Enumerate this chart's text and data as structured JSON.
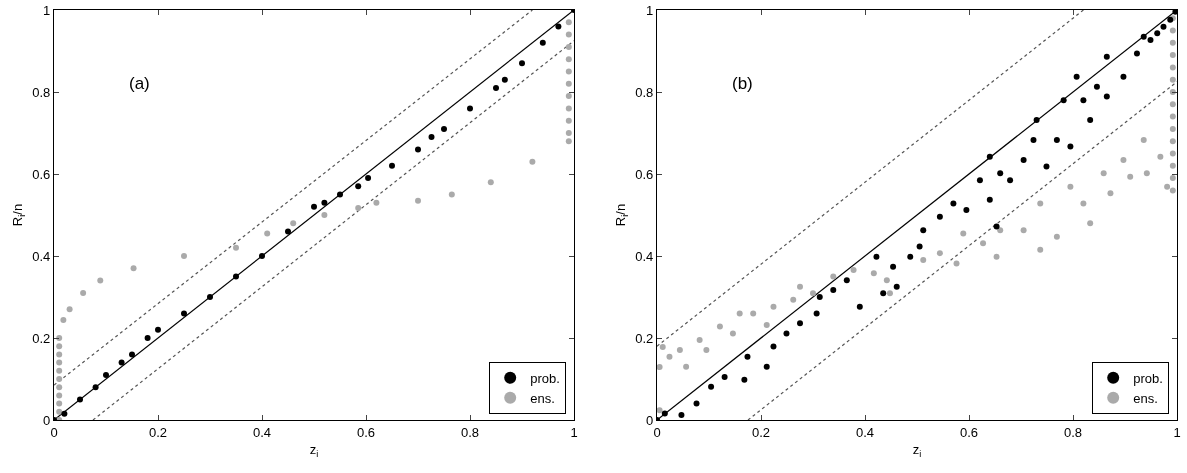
{
  "chart_data": [
    {
      "type": "scatter",
      "xlabel": "z$_{i}$",
      "ylabel": "R$_{i}$/n",
      "annotations": [
        "(a)"
      ],
      "xlim": [
        0,
        1
      ],
      "ylim": [
        0,
        1
      ],
      "xticks": [
        0,
        0.2,
        0.4,
        0.6,
        0.8,
        1
      ],
      "yticks": [
        0,
        0.2,
        0.4,
        0.6,
        0.8,
        1
      ],
      "legend": "bottom right",
      "marker": "circle",
      "series": [
        {
          "name": "prob.",
          "color": "#000000",
          "x": [
            0,
            0.02,
            0.05,
            0.08,
            0.1,
            0.13,
            0.15,
            0.18,
            0.2,
            0.25,
            0.3,
            0.35,
            0.4,
            0.45,
            0.5,
            0.52,
            0.55,
            0.585,
            0.604,
            0.65,
            0.7,
            0.726,
            0.75,
            0.8,
            0.85,
            0.867,
            0.9,
            0.94,
            0.97,
            1
          ],
          "values": [
            0,
            0.015,
            0.05,
            0.08,
            0.11,
            0.14,
            0.16,
            0.2,
            0.22,
            0.26,
            0.3,
            0.35,
            0.4,
            0.46,
            0.52,
            0.53,
            0.55,
            0.57,
            0.59,
            0.62,
            0.66,
            0.69,
            0.71,
            0.76,
            0.81,
            0.83,
            0.87,
            0.92,
            0.96,
            1
          ]
        },
        {
          "name": "ens.",
          "color": "#aaaaaa",
          "x": [
            0.01,
            0.01,
            0.01,
            0.01,
            0.01,
            0.01,
            0.01,
            0.01,
            0.01,
            0.01,
            0.01,
            0.018,
            0.03,
            0.056,
            0.089,
            0.153,
            0.25,
            0.35,
            0.41,
            0.46,
            0.52,
            0.585,
            0.62,
            0.7,
            0.765,
            0.84,
            0.92,
            0.99,
            0.99,
            0.99,
            0.99,
            0.99,
            0.99,
            0.99,
            0.99,
            0.99,
            0.99,
            0.99
          ],
          "values": [
            0,
            0.02,
            0.04,
            0.06,
            0.08,
            0.1,
            0.12,
            0.14,
            0.16,
            0.18,
            0.2,
            0.244,
            0.27,
            0.31,
            0.34,
            0.37,
            0.4,
            0.42,
            0.455,
            0.48,
            0.5,
            0.517,
            0.53,
            0.535,
            0.55,
            0.58,
            0.63,
            0.68,
            0.7,
            0.73,
            0.76,
            0.79,
            0.82,
            0.85,
            0.88,
            0.91,
            0.94,
            0.97
          ]
        },
        {
          "type": "line",
          "color": "#000000",
          "line_style": "solid",
          "marker": "none",
          "x": [
            0,
            1
          ],
          "values": [
            0,
            1
          ]
        },
        {
          "type": "line",
          "color": "#555555",
          "line_style": "dotted",
          "marker": "none",
          "x": [
            0,
            0.92
          ],
          "values": [
            0.085,
            1
          ]
        },
        {
          "type": "line",
          "color": "#555555",
          "line_style": "dotted",
          "marker": "none",
          "x": [
            0.075,
            1
          ],
          "values": [
            0,
            0.925
          ]
        }
      ]
    },
    {
      "type": "scatter",
      "xlabel": "z$_{i}$",
      "ylabel": "R$_{i}$/n",
      "annotations": [
        "(b)"
      ],
      "xlim": [
        0,
        1
      ],
      "ylim": [
        0,
        1
      ],
      "xticks": [
        0,
        0.2,
        0.4,
        0.6,
        0.8,
        1
      ],
      "yticks": [
        0,
        0.2,
        0.4,
        0.6,
        0.8,
        1
      ],
      "legend": "bottom right",
      "marker": "circle",
      "series": [
        {
          "name": "prob.",
          "color": "#000000",
          "x": [
            0,
            0.015,
            0.047,
            0.076,
            0.104,
            0.13,
            0.168,
            0.174,
            0.211,
            0.224,
            0.249,
            0.275,
            0.307,
            0.313,
            0.339,
            0.365,
            0.39,
            0.422,
            0.435,
            0.454,
            0.461,
            0.487,
            0.505,
            0.512,
            0.544,
            0.57,
            0.595,
            0.621,
            0.64,
            0.64,
            0.653,
            0.66,
            0.679,
            0.705,
            0.724,
            0.73,
            0.749,
            0.769,
            0.782,
            0.795,
            0.807,
            0.82,
            0.833,
            0.846,
            0.865,
            0.865,
            0.897,
            0.923,
            0.936,
            0.949,
            0.962,
            0.974,
            0.987,
            0.997
          ],
          "values": [
            0,
            0.016,
            0.012,
            0.04,
            0.081,
            0.105,
            0.098,
            0.154,
            0.13,
            0.179,
            0.211,
            0.236,
            0.26,
            0.3,
            0.317,
            0.341,
            0.276,
            0.398,
            0.309,
            0.374,
            0.325,
            0.398,
            0.423,
            0.463,
            0.496,
            0.528,
            0.512,
            0.585,
            0.537,
            0.642,
            0.472,
            0.602,
            0.585,
            0.634,
            0.683,
            0.732,
            0.618,
            0.683,
            0.78,
            0.667,
            0.837,
            0.78,
            0.732,
            0.813,
            0.886,
            0.789,
            0.837,
            0.894,
            0.935,
            0.927,
            0.943,
            0.959,
            0.976,
            0.996
          ]
        },
        {
          "name": "ens.",
          "color": "#aaaaaa",
          "x": [
            0.005,
            0.005,
            0.011,
            0.024,
            0.044,
            0.056,
            0.082,
            0.095,
            0.121,
            0.146,
            0.159,
            0.185,
            0.211,
            0.224,
            0.262,
            0.275,
            0.3,
            0.339,
            0.378,
            0.417,
            0.442,
            0.448,
            0.512,
            0.544,
            0.576,
            0.589,
            0.627,
            0.653,
            0.66,
            0.705,
            0.737,
            0.737,
            0.769,
            0.795,
            0.82,
            0.833,
            0.859,
            0.872,
            0.897,
            0.91,
            0.936,
            0.942,
            0.968,
            0.981,
            0.992,
            0.992,
            0.992,
            0.992,
            0.992,
            0.992,
            0.992,
            0.992,
            0.992,
            0.992,
            0.992,
            0.992,
            0.992,
            0.992,
            0.992
          ],
          "values": [
            0.024,
            0.129,
            0.178,
            0.154,
            0.171,
            0.13,
            0.195,
            0.171,
            0.228,
            0.211,
            0.26,
            0.26,
            0.232,
            0.276,
            0.293,
            0.325,
            0.309,
            0.35,
            0.366,
            0.358,
            0.341,
            0.309,
            0.39,
            0.407,
            0.382,
            0.455,
            0.431,
            0.398,
            0.463,
            0.463,
            0.415,
            0.528,
            0.447,
            0.569,
            0.528,
            0.48,
            0.602,
            0.553,
            0.634,
            0.593,
            0.683,
            0.602,
            0.642,
            0.569,
            0.56,
            0.59,
            0.62,
            0.65,
            0.68,
            0.71,
            0.74,
            0.77,
            0.8,
            0.83,
            0.86,
            0.89,
            0.92,
            0.95,
            0.98
          ]
        },
        {
          "type": "line",
          "color": "#000000",
          "line_style": "solid",
          "marker": "none",
          "x": [
            0,
            1
          ],
          "values": [
            0,
            1
          ]
        },
        {
          "type": "line",
          "color": "#555555",
          "line_style": "dotted",
          "marker": "none",
          "x": [
            0,
            0.82
          ],
          "values": [
            0.18,
            1
          ]
        },
        {
          "type": "line",
          "color": "#555555",
          "line_style": "dotted",
          "marker": "none",
          "x": [
            0.175,
            1
          ],
          "values": [
            0,
            0.825
          ]
        }
      ]
    }
  ]
}
